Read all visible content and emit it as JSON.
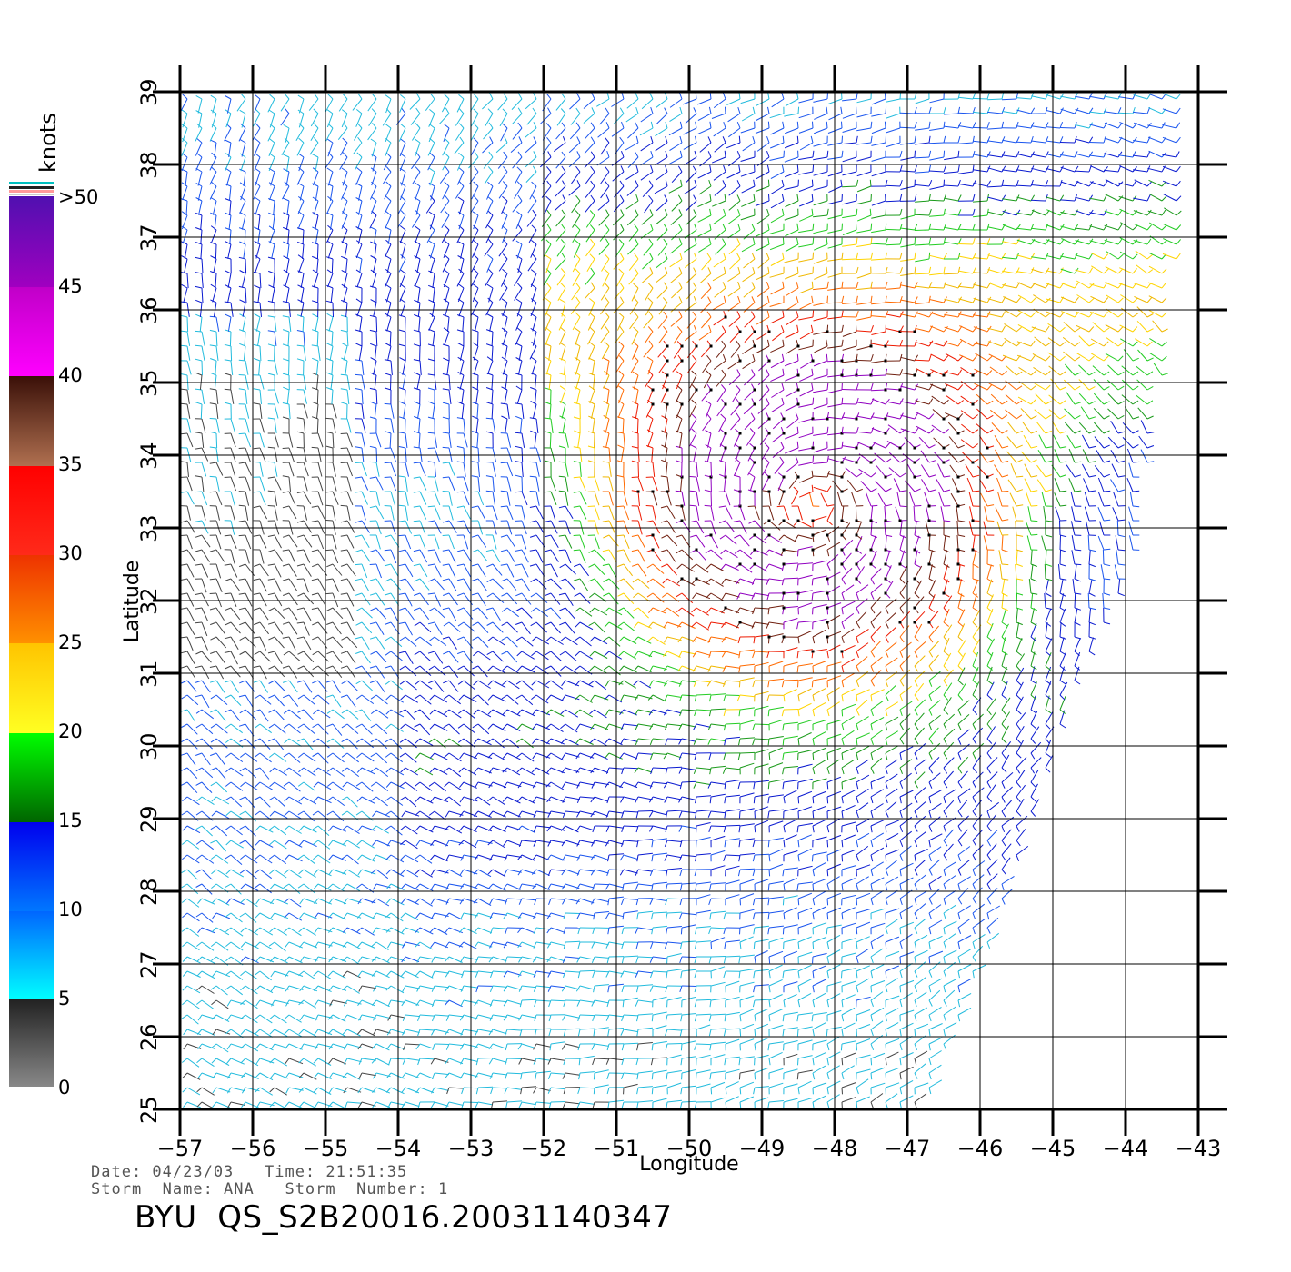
{
  "map": {
    "xlabel": "Longitude",
    "ylabel": "Latitude",
    "lon_range": [
      -57,
      -43
    ],
    "lat_range": [
      25,
      39
    ],
    "lon_ticks": [
      "-57",
      "-56",
      "-55",
      "-54",
      "-53",
      "-52",
      "-51",
      "-50",
      "-49",
      "-48",
      "-47",
      "-46",
      "-45",
      "-44",
      "-43"
    ],
    "lat_ticks": [
      "25",
      "26",
      "27",
      "28",
      "29",
      "30",
      "31",
      "32",
      "33",
      "34",
      "35",
      "36",
      "37",
      "38",
      "39"
    ],
    "grid": true,
    "storm_center": {
      "lon": -48.3,
      "lat": 33.3
    },
    "swath_east_edge": [
      [
        -43.1,
        39
      ],
      [
        -43.4,
        35.5
      ],
      [
        -43.9,
        32.5
      ],
      [
        -44.6,
        31
      ],
      [
        -45.3,
        29
      ],
      [
        -46.0,
        27
      ],
      [
        -46.8,
        25
      ]
    ]
  },
  "legend": {
    "unit": "knots",
    "labels": [
      {
        "text": ">50",
        "value": 50
      },
      {
        "text": "45",
        "value": 45
      },
      {
        "text": "40",
        "value": 40
      },
      {
        "text": "35",
        "value": 35
      },
      {
        "text": "30",
        "value": 30
      },
      {
        "text": "25",
        "value": 25
      },
      {
        "text": "20",
        "value": 20
      },
      {
        "text": "15",
        "value": 15
      },
      {
        "text": "10",
        "value": 10
      },
      {
        "text": "5",
        "value": 5
      },
      {
        "text": "0",
        "value": 0
      }
    ],
    "colors": {
      "0_5": [
        "#888888",
        "#222222"
      ],
      "5_10": [
        "#00ffff",
        "#0066ff"
      ],
      "10_15": [
        "#0077ff",
        "#0000ee"
      ],
      "15_20": [
        "#006400",
        "#00ff00"
      ],
      "20_25": [
        "#ffff22",
        "#ffc400"
      ],
      "25_30": [
        "#ff9000",
        "#ee3300"
      ],
      "30_35": [
        "#ff1a1a",
        "#ff0000"
      ],
      "35_40": [
        "#b07050",
        "#3a1008"
      ],
      "40_45": [
        "#ff00ff",
        "#c000c8"
      ],
      "45_50": [
        "#a000c0",
        "#5010b0"
      ]
    }
  },
  "footer": {
    "line1": "Date: 04/23/03   Time: 21:51:35",
    "line2": "Storm  Name: ANA   Storm  Number: 1",
    "id": "BYU  QS_S2B20016.20031140347"
  }
}
